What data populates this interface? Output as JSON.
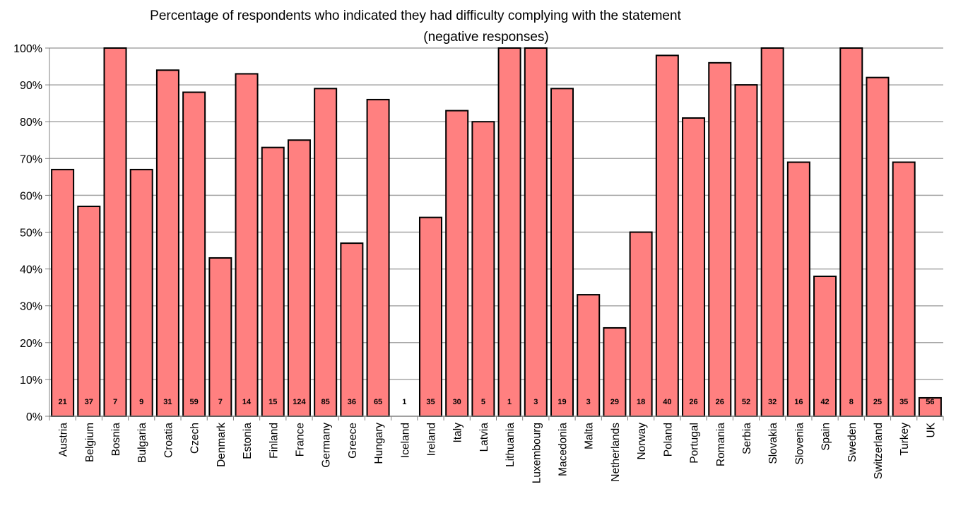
{
  "chart_data": {
    "type": "bar",
    "title": "Percentage of respondents who indicated they had difficulty complying with the statement",
    "subtitle": "(negative responses)",
    "xlabel": "",
    "ylabel": "",
    "ylim": [
      0,
      100
    ],
    "y_ticks": [
      0,
      10,
      20,
      30,
      40,
      50,
      60,
      70,
      80,
      90,
      100
    ],
    "y_tick_labels": [
      "0%",
      "10%",
      "20%",
      "30%",
      "40%",
      "50%",
      "60%",
      "70%",
      "80%",
      "90%",
      "100%"
    ],
    "grid": true,
    "legend": "none",
    "categories": [
      "Austria",
      "Belgium",
      "Bosnia",
      "Bulgaria",
      "Croatia",
      "Czech",
      "Denmark",
      "Estonia",
      "Finland",
      "France",
      "Germany",
      "Greece",
      "Hungary",
      "Iceland",
      "Ireland",
      "Italy",
      "Latvia",
      "Lithuania",
      "Luxembourg",
      "Macedonia",
      "Malta",
      "Netherlands",
      "Norway",
      "Poland",
      "Portugal",
      "Romania",
      "Serbia",
      "Slovakia",
      "Slovenia",
      "Spain",
      "Sweden",
      "Switzerland",
      "Turkey",
      "UK"
    ],
    "values": [
      67,
      57,
      100,
      67,
      94,
      88,
      43,
      93,
      73,
      75,
      89,
      47,
      86,
      0,
      54,
      83,
      80,
      100,
      100,
      89,
      33,
      24,
      50,
      98,
      81,
      96,
      90,
      100,
      69,
      38,
      100,
      92,
      69,
      5
    ],
    "bar_labels": [
      "21",
      "37",
      "7",
      "9",
      "31",
      "59",
      "7",
      "14",
      "15",
      "124",
      "85",
      "36",
      "65",
      "1",
      "35",
      "30",
      "5",
      "1",
      "3",
      "19",
      "3",
      "29",
      "18",
      "40",
      "26",
      "26",
      "52",
      "32",
      "16",
      "42",
      "8",
      "25",
      "35",
      "56"
    ],
    "colors": {
      "bar_fill": "#ff8080",
      "bar_stroke": "#000000",
      "grid": "#a6a6a6",
      "axis": "#808080"
    }
  }
}
